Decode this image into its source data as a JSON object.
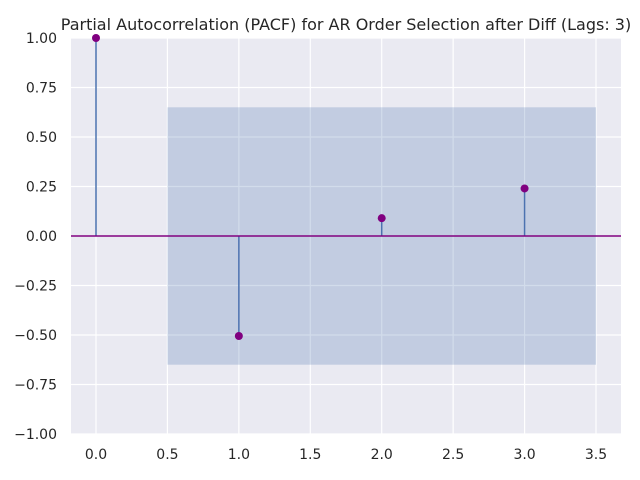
{
  "chart_data": {
    "type": "stem",
    "title": "Partial Autocorrelation (PACF) for AR Order Selection after Diff (Lags: 3)",
    "xlabel": "",
    "ylabel": "",
    "x": [
      0,
      1,
      2,
      3
    ],
    "values": [
      1.0,
      -0.505,
      0.09,
      0.24
    ],
    "confidence_band": {
      "x_range": [
        0.5,
        3.5
      ],
      "lower": -0.65,
      "upper": 0.65
    },
    "xlim": [
      -0.175,
      3.675
    ],
    "ylim": [
      -1.0,
      1.0
    ],
    "xticks": [
      0.0,
      0.5,
      1.0,
      1.5,
      2.0,
      2.5,
      3.0,
      3.5
    ],
    "xtick_labels": [
      "0.0",
      "0.5",
      "1.0",
      "1.5",
      "2.0",
      "2.5",
      "3.0",
      "3.5"
    ],
    "yticks": [
      -1.0,
      -0.75,
      -0.5,
      -0.25,
      0.0,
      0.25,
      0.5,
      0.75,
      1.0
    ],
    "ytick_labels": [
      "−1.00",
      "−0.75",
      "−0.50",
      "−0.25",
      "0.00",
      "0.25",
      "0.50",
      "0.75",
      "1.00"
    ],
    "grid": true,
    "colors": {
      "plot_background": "#eaeaf2",
      "grid": "#ffffff",
      "stem": "#4c72b0",
      "marker": "#800080",
      "zero_line": "#800080",
      "confidence_band": "#4c72b0"
    }
  }
}
